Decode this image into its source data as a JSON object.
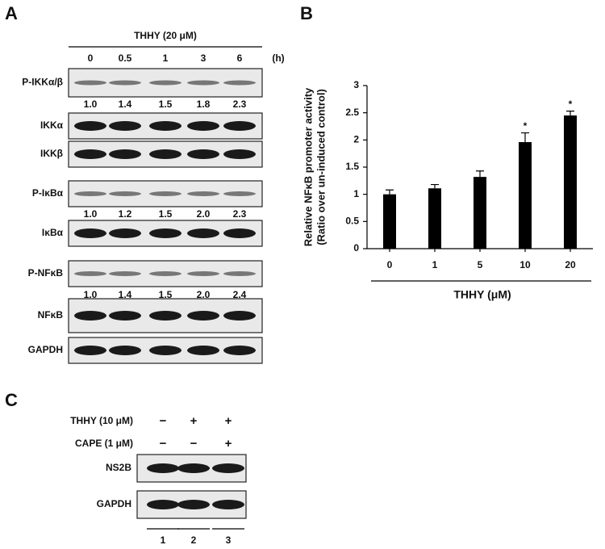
{
  "panel_a": {
    "label": "A",
    "treatment": "THHY (20 μM)",
    "timepoints": [
      "0",
      "0.5",
      "1",
      "3",
      "6"
    ],
    "time_unit": "(h)",
    "blots": [
      {
        "name": "P-IKKα/β",
        "quant": [
          "1.0",
          "1.4",
          "1.5",
          "1.8",
          "2.3"
        ]
      },
      {
        "name": "IKKα"
      },
      {
        "name": "IKKβ"
      },
      {
        "name": "P-IκBα",
        "quant": [
          "1.0",
          "1.2",
          "1.5",
          "2.0",
          "2.3"
        ]
      },
      {
        "name": "IκBα"
      },
      {
        "name": "P-NFκB",
        "quant": [
          "1.0",
          "1.4",
          "1.5",
          "2.0",
          "2.4"
        ]
      },
      {
        "name": "NFκB"
      },
      {
        "name": "GAPDH"
      }
    ]
  },
  "chart_data": {
    "type": "bar",
    "panel_label": "B",
    "categories": [
      "0",
      "1",
      "5",
      "10",
      "20"
    ],
    "values": [
      1.0,
      1.11,
      1.32,
      1.96,
      2.45
    ],
    "errors": [
      0.08,
      0.07,
      0.11,
      0.17,
      0.08
    ],
    "annotations": [
      null,
      null,
      null,
      "*",
      "*"
    ],
    "ylabel": "Relative NFκB promoter activity",
    "ylabel2": "(Ratio over un-induced control)",
    "xlabel": "THHY (μM)",
    "ylim": [
      0,
      3
    ],
    "yticks": [
      0,
      0.5,
      1,
      1.5,
      2,
      2.5,
      3
    ],
    "color": "#000000"
  },
  "panel_c": {
    "label": "C",
    "conditions": [
      {
        "name": "THHY (10 μM)",
        "signs": [
          "−",
          "+",
          "+"
        ]
      },
      {
        "name": "CAPE (1 μM)",
        "signs": [
          "−",
          "−",
          "+"
        ]
      }
    ],
    "blots": [
      "NS2B",
      "GAPDH"
    ],
    "lanes": [
      "1",
      "2",
      "3"
    ]
  }
}
